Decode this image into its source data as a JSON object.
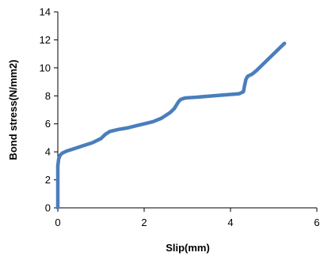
{
  "chart_data": {
    "type": "line",
    "title": "",
    "xlabel": "Slip(mm)",
    "ylabel": "Bond stress(N/mm2)",
    "xlim": [
      0,
      6
    ],
    "ylim": [
      0,
      14
    ],
    "xticks": [
      "0",
      "2",
      "4",
      "6"
    ],
    "yticks": [
      "0",
      "2",
      "4",
      "6",
      "8",
      "10",
      "12",
      "14"
    ],
    "grid": false,
    "legend": "none",
    "series": [
      {
        "color": "#4a7ebb",
        "x": [
          0.0,
          0.0,
          0.02,
          0.05,
          0.1,
          0.2,
          0.4,
          0.6,
          0.8,
          1.0,
          1.1,
          1.2,
          1.4,
          1.6,
          1.8,
          2.0,
          2.2,
          2.4,
          2.6,
          2.7,
          2.8,
          2.85,
          2.95,
          3.2,
          3.6,
          4.0,
          4.2,
          4.3,
          4.33,
          4.36,
          4.4,
          4.5,
          4.6,
          4.8,
          5.0,
          5.15,
          5.25
        ],
        "y": [
          0.0,
          3.0,
          3.5,
          3.75,
          3.9,
          4.05,
          4.25,
          4.45,
          4.65,
          4.95,
          5.25,
          5.45,
          5.6,
          5.7,
          5.85,
          6.0,
          6.15,
          6.4,
          6.8,
          7.1,
          7.6,
          7.75,
          7.85,
          7.9,
          8.0,
          8.1,
          8.15,
          8.3,
          8.8,
          9.2,
          9.4,
          9.55,
          9.8,
          10.4,
          11.0,
          11.45,
          11.75
        ]
      }
    ]
  }
}
